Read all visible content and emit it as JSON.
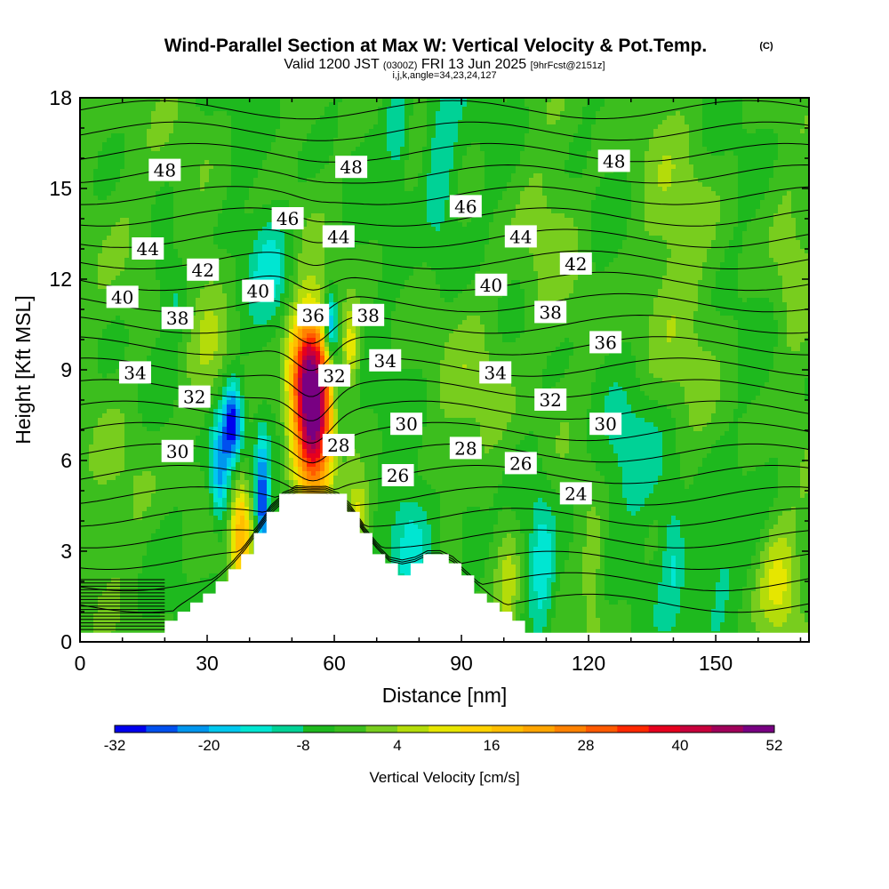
{
  "chart_data": {
    "type": "heatmap",
    "title": "Wind-Parallel Section at Max W: Vertical Velocity & Pot.Temp.",
    "title_mark": "(C)",
    "subtitle": {
      "valid": "Valid 1200 JST",
      "utc": "(0300Z)",
      "date": "FRI 13 Jun 2025",
      "fcst": "[9hrFcst@2151z]",
      "indices": "i,j,k,angle=34,23,24,127"
    },
    "xlabel": "Distance [nm]",
    "ylabel": "Height [Kft MSL]",
    "xlim": [
      0,
      172
    ],
    "ylim": [
      0,
      18
    ],
    "x_ticks": [
      "0",
      "30",
      "60",
      "90",
      "120",
      "150"
    ],
    "y_ticks": [
      "0",
      "3",
      "6",
      "9",
      "12",
      "15",
      "18"
    ],
    "colorbar": {
      "title": "Vertical Velocity [cm/s]",
      "tick_labels": [
        "-32",
        "-20",
        "-8",
        "4",
        "16",
        "28",
        "40",
        "52"
      ],
      "levels": [
        -32,
        -28,
        -24,
        -20,
        -16,
        -12,
        -8,
        -4,
        0,
        4,
        8,
        12,
        16,
        20,
        24,
        28,
        32,
        36,
        40,
        44,
        48,
        52
      ],
      "colors": [
        "#0000ee",
        "#0050ee",
        "#0096ee",
        "#00c8ee",
        "#00e6d2",
        "#00d296",
        "#1eb91e",
        "#3cbe1e",
        "#78cd1e",
        "#b4dc0a",
        "#e6e600",
        "#ffd200",
        "#ffbe00",
        "#ffa500",
        "#ff8200",
        "#ff5a00",
        "#ff2800",
        "#e6001e",
        "#c8003c",
        "#a0005a",
        "#780082"
      ]
    },
    "contour_series": {
      "name": "Potential Temperature",
      "labels": [
        {
          "text": "48",
          "x": 20,
          "y": 15.6
        },
        {
          "text": "48",
          "x": 64,
          "y": 15.7
        },
        {
          "text": "48",
          "x": 126,
          "y": 15.9
        },
        {
          "text": "46",
          "x": 49,
          "y": 14.0
        },
        {
          "text": "46",
          "x": 91,
          "y": 14.4
        },
        {
          "text": "44",
          "x": 16,
          "y": 13.0
        },
        {
          "text": "44",
          "x": 61,
          "y": 13.4
        },
        {
          "text": "44",
          "x": 104,
          "y": 13.4
        },
        {
          "text": "42",
          "x": 29,
          "y": 12.3
        },
        {
          "text": "42",
          "x": 117,
          "y": 12.5
        },
        {
          "text": "40",
          "x": 10,
          "y": 11.4
        },
        {
          "text": "40",
          "x": 42,
          "y": 11.6
        },
        {
          "text": "40",
          "x": 97,
          "y": 11.8
        },
        {
          "text": "38",
          "x": 23,
          "y": 10.7
        },
        {
          "text": "38",
          "x": 68,
          "y": 10.8
        },
        {
          "text": "38",
          "x": 111,
          "y": 10.9
        },
        {
          "text": "36",
          "x": 55,
          "y": 10.8
        },
        {
          "text": "36",
          "x": 124,
          "y": 9.9
        },
        {
          "text": "34",
          "x": 13,
          "y": 8.9
        },
        {
          "text": "34",
          "x": 72,
          "y": 9.3
        },
        {
          "text": "34",
          "x": 98,
          "y": 8.9
        },
        {
          "text": "32",
          "x": 27,
          "y": 8.1
        },
        {
          "text": "32",
          "x": 60,
          "y": 8.8
        },
        {
          "text": "32",
          "x": 111,
          "y": 8.0
        },
        {
          "text": "30",
          "x": 23,
          "y": 6.3
        },
        {
          "text": "30",
          "x": 77,
          "y": 7.2
        },
        {
          "text": "30",
          "x": 124,
          "y": 7.2
        },
        {
          "text": "28",
          "x": 61,
          "y": 6.5
        },
        {
          "text": "28",
          "x": 91,
          "y": 6.4
        },
        {
          "text": "26",
          "x": 75,
          "y": 5.5
        },
        {
          "text": "26",
          "x": 104,
          "y": 5.9
        },
        {
          "text": "24",
          "x": 117,
          "y": 4.9
        }
      ]
    },
    "terrain_profile": [
      [
        0,
        0.3
      ],
      [
        20,
        0.3
      ],
      [
        20,
        0.7
      ],
      [
        23,
        0.7
      ],
      [
        23,
        1.0
      ],
      [
        26,
        1.0
      ],
      [
        26,
        1.3
      ],
      [
        29,
        1.3
      ],
      [
        29,
        1.6
      ],
      [
        32,
        1.6
      ],
      [
        32,
        2.0
      ],
      [
        35,
        2.0
      ],
      [
        35,
        2.4
      ],
      [
        38,
        2.4
      ],
      [
        38,
        2.9
      ],
      [
        41,
        2.9
      ],
      [
        41,
        3.6
      ],
      [
        44,
        3.6
      ],
      [
        44,
        4.3
      ],
      [
        47,
        4.3
      ],
      [
        47,
        4.9
      ],
      [
        63,
        4.9
      ],
      [
        63,
        4.3
      ],
      [
        66,
        4.3
      ],
      [
        66,
        3.6
      ],
      [
        69,
        3.6
      ],
      [
        69,
        2.9
      ],
      [
        72,
        2.9
      ],
      [
        72,
        2.6
      ],
      [
        75,
        2.6
      ],
      [
        75,
        2.2
      ],
      [
        78,
        2.2
      ],
      [
        78,
        2.6
      ],
      [
        81,
        2.6
      ],
      [
        81,
        2.9
      ],
      [
        87,
        2.9
      ],
      [
        87,
        2.6
      ],
      [
        90,
        2.6
      ],
      [
        90,
        2.2
      ],
      [
        93,
        2.2
      ],
      [
        93,
        1.6
      ],
      [
        96,
        1.6
      ],
      [
        96,
        1.3
      ],
      [
        99,
        1.3
      ],
      [
        99,
        1.0
      ],
      [
        102,
        1.0
      ],
      [
        102,
        0.7
      ],
      [
        105,
        0.7
      ],
      [
        105,
        0.3
      ],
      [
        172,
        0.3
      ]
    ],
    "field_features": [
      {
        "x": 55,
        "y": 7.5,
        "sx": 3.2,
        "sy": 2.1,
        "w": 50
      },
      {
        "x": 53,
        "y": 9.2,
        "sx": 3.0,
        "sy": 1.2,
        "w": 20
      },
      {
        "x": 38,
        "y": 3.6,
        "sx": 1.8,
        "sy": 1.3,
        "w": 22
      },
      {
        "x": 64,
        "y": 9.7,
        "sx": 1.5,
        "sy": 0.9,
        "w": 14
      },
      {
        "x": 66,
        "y": 4.3,
        "sx": 1.8,
        "sy": 0.6,
        "w": 12
      },
      {
        "x": 36,
        "y": 7.2,
        "sx": 1.6,
        "sy": 0.9,
        "w": -28
      },
      {
        "x": 33,
        "y": 5.6,
        "sx": 1.7,
        "sy": 1.2,
        "w": -20
      },
      {
        "x": 43,
        "y": 4.4,
        "sx": 1.0,
        "sy": 1.5,
        "w": -24
      },
      {
        "x": 59,
        "y": 10.4,
        "sx": 1.2,
        "sy": 0.8,
        "w": -22
      },
      {
        "x": 61,
        "y": 8.0,
        "sx": 1.3,
        "sy": 1.7,
        "w": -8
      },
      {
        "x": 78,
        "y": 3.5,
        "sx": 3.5,
        "sy": 1.2,
        "w": -10
      },
      {
        "x": 92,
        "y": 3.4,
        "sx": 2.5,
        "sy": 1.0,
        "w": -8
      },
      {
        "x": 109,
        "y": 2.4,
        "sx": 2.0,
        "sy": 1.8,
        "w": -10
      },
      {
        "x": 165,
        "y": 2.0,
        "sx": 3.5,
        "sy": 1.5,
        "w": 14
      },
      {
        "x": 101,
        "y": 2.0,
        "sx": 1.8,
        "sy": 1.6,
        "w": 8
      },
      {
        "x": 121,
        "y": 2.2,
        "sx": 1.5,
        "sy": 1.6,
        "w": 6
      },
      {
        "x": 140,
        "y": 3.0,
        "sx": 2.0,
        "sy": 1.6,
        "w": -8
      },
      {
        "x": 150,
        "y": 2.5,
        "sx": 4.0,
        "sy": 1.8,
        "w": -8
      },
      {
        "x": 85,
        "y": 15.5,
        "sx": 3.0,
        "sy": 2.2,
        "w": -9
      },
      {
        "x": 12,
        "y": 14.0,
        "sx": 5.0,
        "sy": 3.0,
        "w": 4
      },
      {
        "x": 140,
        "y": 12.5,
        "sx": 8.0,
        "sy": 4.0,
        "w": 5
      },
      {
        "x": 30,
        "y": 10.5,
        "sx": 4.0,
        "sy": 2.0,
        "w": 5
      },
      {
        "x": 95,
        "y": 8.5,
        "sx": 6.0,
        "sy": 2.5,
        "w": 5
      },
      {
        "x": 110,
        "y": 13.5,
        "sx": 5.0,
        "sy": 2.0,
        "w": 4
      },
      {
        "x": 168,
        "y": 12.0,
        "sx": 3.0,
        "sy": 2.5,
        "w": 4
      },
      {
        "x": 12,
        "y": 5.0,
        "sx": 5.0,
        "sy": 2.0,
        "w": 4
      },
      {
        "x": 45,
        "y": 12.5,
        "sx": 3.5,
        "sy": 1.2,
        "w": -9
      },
      {
        "x": 22,
        "y": 11.5,
        "sx": 3.0,
        "sy": 1.0,
        "w": -8
      },
      {
        "x": 130,
        "y": 6.0,
        "sx": 6.0,
        "sy": 1.5,
        "w": -7
      },
      {
        "x": 75,
        "y": 17.0,
        "sx": 2.0,
        "sy": 1.2,
        "w": -9
      }
    ],
    "grid": false,
    "legend": "bottom"
  }
}
